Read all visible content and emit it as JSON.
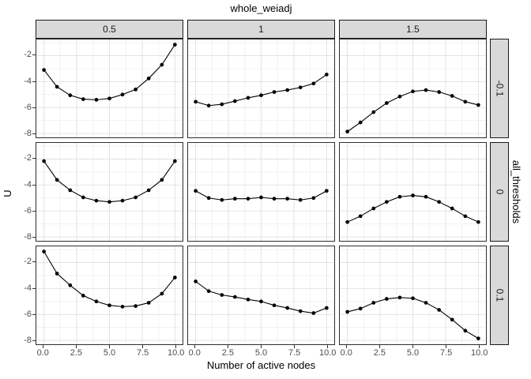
{
  "chart_data": {
    "type": "line",
    "title": "whole_weiadj",
    "facet_col_title": "whole_weiadj",
    "facet_row_title": "all_thresholds",
    "col_labels": [
      "0.5",
      "1",
      "1.5"
    ],
    "row_labels": [
      "-0.1",
      "0",
      "0.1"
    ],
    "xlabel": "Number of active nodes",
    "ylabel": "U",
    "x": [
      0,
      1,
      2,
      3,
      4,
      5,
      6,
      7,
      8,
      9,
      10
    ],
    "x_tick_labels": [
      "0.0",
      "2.5",
      "5.0",
      "7.5",
      "10.0"
    ],
    "x_tick_values": [
      0,
      2.5,
      5,
      7.5,
      10
    ],
    "y_tick_labels": [
      "-2",
      "-4",
      "-6",
      "-8"
    ],
    "y_tick_values": [
      -2,
      -4,
      -6,
      -8
    ],
    "x_minor_values": [
      1.25,
      3.75,
      6.25,
      8.75
    ],
    "y_minor_values": [
      -1,
      -3,
      -5,
      -7
    ],
    "xlim": [
      -0.55,
      10.55
    ],
    "ylim": [
      -8.3,
      -0.75
    ],
    "grid": true,
    "legend": "none",
    "panels": [
      {
        "row": "-0.1",
        "col": "0.5",
        "y": [
          -3.1,
          -4.4,
          -5.05,
          -5.35,
          -5.4,
          -5.3,
          -5.0,
          -4.6,
          -3.75,
          -2.7,
          -1.15
        ]
      },
      {
        "row": "-0.1",
        "col": "1",
        "y": [
          -5.55,
          -5.85,
          -5.75,
          -5.5,
          -5.25,
          -5.05,
          -4.8,
          -4.65,
          -4.45,
          -4.15,
          -3.45
        ]
      },
      {
        "row": "-0.1",
        "col": "1.5",
        "y": [
          -7.85,
          -7.15,
          -6.35,
          -5.65,
          -5.15,
          -4.75,
          -4.65,
          -4.8,
          -5.1,
          -5.55,
          -5.8
        ]
      },
      {
        "row": "0",
        "col": "0.5",
        "y": [
          -2.15,
          -3.6,
          -4.4,
          -4.95,
          -5.2,
          -5.3,
          -5.2,
          -4.95,
          -4.4,
          -3.6,
          -2.15
        ]
      },
      {
        "row": "0",
        "col": "1",
        "y": [
          -4.45,
          -5.0,
          -5.15,
          -5.05,
          -5.05,
          -4.95,
          -5.05,
          -5.05,
          -5.15,
          -5.0,
          -4.45
        ]
      },
      {
        "row": "0",
        "col": "1.5",
        "y": [
          -6.85,
          -6.4,
          -5.8,
          -5.3,
          -4.9,
          -4.8,
          -4.9,
          -5.3,
          -5.8,
          -6.4,
          -6.85
        ]
      },
      {
        "row": "0.1",
        "col": "0.5",
        "y": [
          -1.15,
          -2.85,
          -3.75,
          -4.55,
          -5.0,
          -5.3,
          -5.4,
          -5.35,
          -5.1,
          -4.4,
          -3.15
        ]
      },
      {
        "row": "0.1",
        "col": "1",
        "y": [
          -3.45,
          -4.2,
          -4.5,
          -4.65,
          -4.85,
          -5.0,
          -5.3,
          -5.5,
          -5.75,
          -5.9,
          -5.5
        ]
      },
      {
        "row": "0.1",
        "col": "1.5",
        "y": [
          -5.8,
          -5.55,
          -5.1,
          -4.8,
          -4.7,
          -4.75,
          -5.1,
          -5.65,
          -6.4,
          -7.25,
          -7.85
        ]
      }
    ],
    "colors": {
      "strip_fill": "#d9d9d9",
      "strip_border": "#1a1a1a",
      "panel_border": "#2e2e2e",
      "grid_major": "#e2e2e2",
      "grid_minor": "#f1f1f1",
      "series": "#000000",
      "axis_text": "#4d4d4d"
    }
  }
}
